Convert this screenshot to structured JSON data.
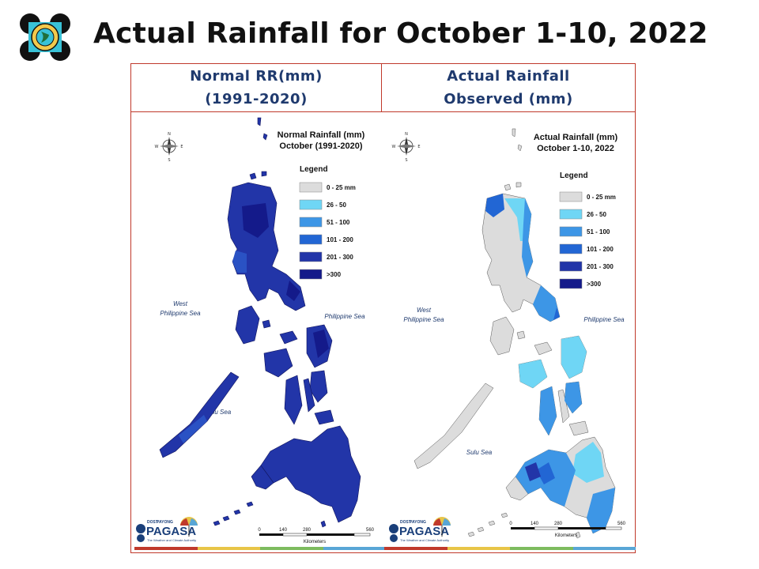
{
  "title": "Actual Rainfall for October 1-10, 2022",
  "left_header": {
    "line1": "Normal RR(mm)",
    "line2": "(1991-2020)"
  },
  "right_header": {
    "line1": "Actual Rainfall",
    "line2": "Observed (mm)"
  },
  "left_map": {
    "title_line1": "Normal Rainfall (mm)",
    "title_line2": "October (1991-2020)",
    "legend_title": "Legend",
    "legend": [
      {
        "label": "0 - 25 mm",
        "color": "#dcdcdc"
      },
      {
        "label": "26 - 50",
        "color": "#6fd6f5"
      },
      {
        "label": "51 - 100",
        "color": "#3d96e6"
      },
      {
        "label": "101 - 200",
        "color": "#2266d4"
      },
      {
        "label": "201 - 300",
        "color": "#2235a8"
      },
      {
        "label": ">300",
        "color": "#141a8a"
      }
    ],
    "sea_labels": {
      "west1": "West",
      "west2": "Philippine Sea",
      "east": "Philippine Sea",
      "south": "Sulu Sea"
    },
    "scale": {
      "ticks": [
        "0",
        "140",
        "280",
        "560"
      ],
      "unit": "Kilometers"
    },
    "compass": {
      "n": "N",
      "s": "S",
      "e": "E",
      "w": "W"
    },
    "brand": {
      "small1": "DOST",
      "small2": "PAYONG",
      "name": "PAGASA",
      "tagline": "The Weather and Climate Authority"
    }
  },
  "right_map": {
    "title_line1": "Actual Rainfall (mm)",
    "title_line2": "October 1-10, 2022",
    "legend_title": "Legend",
    "legend": [
      {
        "label": "0 - 25 mm",
        "color": "#dcdcdc"
      },
      {
        "label": "26 - 50",
        "color": "#6fd6f5"
      },
      {
        "label": "51 - 100",
        "color": "#3d96e6"
      },
      {
        "label": "101 - 200",
        "color": "#2266d4"
      },
      {
        "label": "201 - 300",
        "color": "#2235a8"
      },
      {
        "label": ">300",
        "color": "#141a8a"
      }
    ],
    "sea_labels": {
      "west1": "West",
      "west2": "Philippine Sea",
      "east": "Philippine Sea",
      "south": "Sulu Sea"
    },
    "scale": {
      "ticks": [
        "0",
        "140",
        "280",
        "560"
      ],
      "unit": "Kilometers"
    },
    "compass": {
      "n": "N",
      "s": "S",
      "e": "E",
      "w": "W"
    },
    "brand": {
      "small1": "DOST",
      "small2": "PAYONG",
      "name": "PAGASA",
      "tagline": "The Weather and Climate Authority"
    }
  },
  "colors": {
    "frame": "#c0392b",
    "header_text": "#1f3a6e",
    "sea_label": "#1f3a6e",
    "stripe": [
      "#c0392b",
      "#e8c547",
      "#7dbb5e",
      "#58a6d6"
    ]
  }
}
